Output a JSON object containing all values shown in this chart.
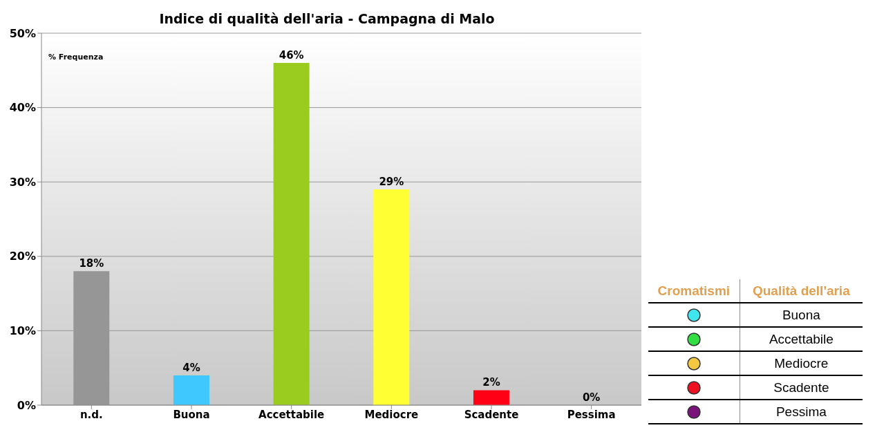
{
  "chart_data": {
    "type": "bar",
    "title": "Indice di qualità dell'aria - Campagna di Malo",
    "ylabel": "% Frequenza",
    "categories": [
      "n.d.",
      "Buona",
      "Accettabile",
      "Mediocre",
      "Scadente",
      "Pessima"
    ],
    "values": [
      18,
      4,
      46,
      29,
      2,
      0
    ],
    "value_labels": [
      "18%",
      "4%",
      "46%",
      "29%",
      "2%",
      "0%"
    ],
    "colors": [
      "#969696",
      "#3ec8fc",
      "#99cc1f",
      "#ffff33",
      "#ff0014",
      "#800080"
    ],
    "ylim": [
      0,
      50
    ],
    "yticks": [
      {
        "value": 0,
        "label": "0%"
      },
      {
        "value": 10,
        "label": "10%"
      },
      {
        "value": 20,
        "label": "20%"
      },
      {
        "value": 30,
        "label": "30%"
      },
      {
        "value": 40,
        "label": "40%"
      },
      {
        "value": 50,
        "label": "50%"
      }
    ],
    "grid": "y",
    "annotations": [
      "Cromatismi",
      "Qualità dell'aria",
      "Buona",
      "Accettabile",
      "Mediocre",
      "Scadente",
      "Pessima"
    ]
  }
}
